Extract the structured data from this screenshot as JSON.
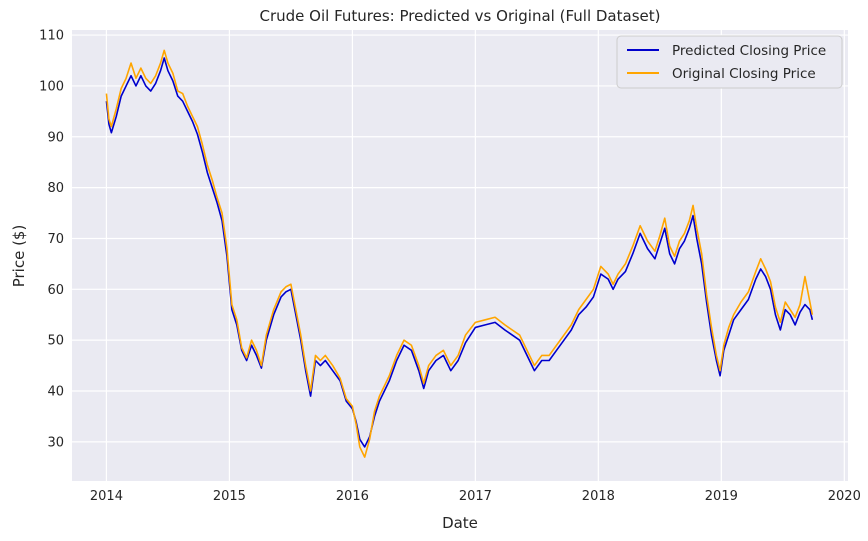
{
  "chart_data": {
    "type": "line",
    "title": "Crude Oil Futures: Predicted vs Original (Full Dataset)",
    "xlabel": "Date",
    "ylabel": "Price ($)",
    "xlim": [
      2013.72,
      2020.03
    ],
    "ylim": [
      22.3,
      111.0
    ],
    "x_ticks": [
      2014,
      2015,
      2016,
      2017,
      2018,
      2019,
      2020
    ],
    "x_tick_labels": [
      "2014",
      "2015",
      "2016",
      "2017",
      "2018",
      "2019",
      "2020"
    ],
    "y_ticks": [
      30,
      40,
      50,
      60,
      70,
      80,
      90,
      100,
      110
    ],
    "y_tick_labels": [
      "30",
      "40",
      "50",
      "60",
      "70",
      "80",
      "90",
      "100",
      "110"
    ],
    "grid": true,
    "background": "#eaeaf2",
    "legend_position": "top-right",
    "series": [
      {
        "name": "Predicted Closing Price",
        "color": "#0000cc",
        "x": [
          2014.0,
          2014.02,
          2014.04,
          2014.08,
          2014.12,
          2014.16,
          2014.2,
          2014.24,
          2014.28,
          2014.32,
          2014.36,
          2014.4,
          2014.44,
          2014.47,
          2014.5,
          2014.54,
          2014.58,
          2014.62,
          2014.66,
          2014.7,
          2014.74,
          2014.78,
          2014.82,
          2014.86,
          2014.9,
          2014.94,
          2014.98,
          2015.02,
          2015.06,
          2015.1,
          2015.14,
          2015.18,
          2015.22,
          2015.26,
          2015.3,
          2015.36,
          2015.42,
          2015.46,
          2015.5,
          2015.54,
          2015.58,
          2015.62,
          2015.66,
          2015.7,
          2015.74,
          2015.78,
          2015.84,
          2015.9,
          2015.95,
          2016.0,
          2016.03,
          2016.06,
          2016.1,
          2016.14,
          2016.18,
          2016.22,
          2016.26,
          2016.3,
          2016.36,
          2016.42,
          2016.48,
          2016.54,
          2016.58,
          2016.62,
          2016.68,
          2016.74,
          2016.8,
          2016.86,
          2016.92,
          2017.0,
          2017.08,
          2017.16,
          2017.24,
          2017.3,
          2017.36,
          2017.42,
          2017.48,
          2017.54,
          2017.6,
          2017.66,
          2017.72,
          2017.78,
          2017.84,
          2017.9,
          2017.96,
          2018.02,
          2018.08,
          2018.12,
          2018.16,
          2018.22,
          2018.28,
          2018.34,
          2018.4,
          2018.46,
          2018.5,
          2018.54,
          2018.58,
          2018.62,
          2018.66,
          2018.7,
          2018.74,
          2018.77,
          2018.8,
          2018.84,
          2018.88,
          2018.92,
          2018.96,
          2018.99,
          2019.02,
          2019.06,
          2019.1,
          2019.16,
          2019.22,
          2019.28,
          2019.32,
          2019.36,
          2019.4,
          2019.44,
          2019.48,
          2019.52,
          2019.56,
          2019.6,
          2019.64,
          2019.68,
          2019.72,
          2019.74
        ],
        "values": [
          97.0,
          92.5,
          90.8,
          94.0,
          98.0,
          100.0,
          102.0,
          100.0,
          102.0,
          100.0,
          99.0,
          100.5,
          103.0,
          105.5,
          103.0,
          101.0,
          98.0,
          97.0,
          95.0,
          93.0,
          90.5,
          87.0,
          83.0,
          80.0,
          77.0,
          73.5,
          66.5,
          56.0,
          53.0,
          48.0,
          46.0,
          49.0,
          47.0,
          44.5,
          50.0,
          55.0,
          58.5,
          59.5,
          60.0,
          55.0,
          50.0,
          44.0,
          39.0,
          46.0,
          45.0,
          46.0,
          44.0,
          42.0,
          38.0,
          36.5,
          34.0,
          30.5,
          29.0,
          31.0,
          35.0,
          38.0,
          40.0,
          42.0,
          46.0,
          49.0,
          48.0,
          44.0,
          40.5,
          44.0,
          46.0,
          47.0,
          44.0,
          46.0,
          49.5,
          52.5,
          53.0,
          53.5,
          52.0,
          51.0,
          50.0,
          47.0,
          44.0,
          46.0,
          46.0,
          48.0,
          50.0,
          52.0,
          55.0,
          56.5,
          58.5,
          63.0,
          62.0,
          60.0,
          62.0,
          63.5,
          67.0,
          71.0,
          68.0,
          66.0,
          69.0,
          72.0,
          67.0,
          65.0,
          68.0,
          69.5,
          72.0,
          74.5,
          70.0,
          65.0,
          57.5,
          51.0,
          46.0,
          43.0,
          48.0,
          51.0,
          54.0,
          56.0,
          58.0,
          62.0,
          64.0,
          62.5,
          60.0,
          55.0,
          52.0,
          56.0,
          55.0,
          53.0,
          55.5,
          57.0,
          56.0,
          54.0
        ]
      },
      {
        "name": "Original Closing Price",
        "color": "#ffa500",
        "x": [
          2014.0,
          2014.02,
          2014.04,
          2014.08,
          2014.12,
          2014.16,
          2014.2,
          2014.24,
          2014.28,
          2014.32,
          2014.36,
          2014.4,
          2014.44,
          2014.47,
          2014.5,
          2014.54,
          2014.58,
          2014.62,
          2014.66,
          2014.7,
          2014.74,
          2014.78,
          2014.82,
          2014.86,
          2014.9,
          2014.94,
          2014.98,
          2015.02,
          2015.06,
          2015.1,
          2015.14,
          2015.18,
          2015.22,
          2015.26,
          2015.3,
          2015.36,
          2015.42,
          2015.46,
          2015.5,
          2015.54,
          2015.58,
          2015.62,
          2015.66,
          2015.7,
          2015.74,
          2015.78,
          2015.84,
          2015.9,
          2015.95,
          2016.0,
          2016.03,
          2016.06,
          2016.1,
          2016.14,
          2016.18,
          2016.22,
          2016.26,
          2016.3,
          2016.36,
          2016.42,
          2016.48,
          2016.54,
          2016.58,
          2016.62,
          2016.68,
          2016.74,
          2016.8,
          2016.86,
          2016.92,
          2017.0,
          2017.08,
          2017.16,
          2017.24,
          2017.3,
          2017.36,
          2017.42,
          2017.48,
          2017.54,
          2017.6,
          2017.66,
          2017.72,
          2017.78,
          2017.84,
          2017.9,
          2017.96,
          2018.02,
          2018.08,
          2018.12,
          2018.16,
          2018.22,
          2018.28,
          2018.34,
          2018.4,
          2018.46,
          2018.5,
          2018.54,
          2018.58,
          2018.62,
          2018.66,
          2018.7,
          2018.74,
          2018.77,
          2018.8,
          2018.84,
          2018.88,
          2018.92,
          2018.96,
          2018.99,
          2019.02,
          2019.06,
          2019.1,
          2019.16,
          2019.22,
          2019.28,
          2019.32,
          2019.36,
          2019.4,
          2019.44,
          2019.48,
          2019.52,
          2019.56,
          2019.6,
          2019.64,
          2019.68,
          2019.72,
          2019.74
        ],
        "values": [
          98.5,
          93.5,
          92.0,
          95.5,
          99.5,
          101.5,
          104.5,
          101.5,
          103.5,
          101.5,
          100.5,
          102.0,
          104.5,
          107.0,
          104.5,
          102.5,
          99.0,
          98.5,
          96.0,
          94.0,
          92.0,
          88.5,
          84.5,
          81.5,
          78.0,
          75.0,
          68.0,
          57.0,
          54.0,
          48.5,
          46.5,
          50.0,
          48.0,
          45.0,
          51.0,
          56.0,
          59.5,
          60.5,
          61.0,
          56.0,
          51.0,
          45.0,
          40.0,
          47.0,
          46.0,
          47.0,
          45.0,
          42.5,
          38.5,
          37.0,
          33.5,
          29.0,
          27.0,
          30.5,
          36.0,
          39.0,
          41.0,
          43.0,
          47.0,
          50.0,
          49.0,
          45.0,
          41.5,
          45.0,
          47.0,
          48.0,
          45.0,
          47.0,
          51.0,
          53.5,
          54.0,
          54.5,
          53.0,
          52.0,
          51.0,
          48.0,
          45.0,
          47.0,
          47.0,
          49.0,
          51.0,
          53.0,
          56.0,
          58.0,
          60.0,
          64.5,
          63.0,
          61.0,
          63.0,
          65.0,
          68.5,
          72.5,
          69.5,
          67.5,
          70.5,
          74.0,
          68.5,
          66.5,
          69.5,
          71.0,
          73.5,
          76.5,
          72.0,
          67.0,
          59.0,
          52.5,
          47.0,
          44.0,
          49.0,
          52.5,
          55.0,
          57.5,
          59.5,
          63.5,
          66.0,
          64.0,
          61.5,
          56.5,
          53.5,
          57.5,
          56.0,
          54.5,
          57.0,
          62.5,
          57.5,
          55.0
        ]
      }
    ]
  }
}
